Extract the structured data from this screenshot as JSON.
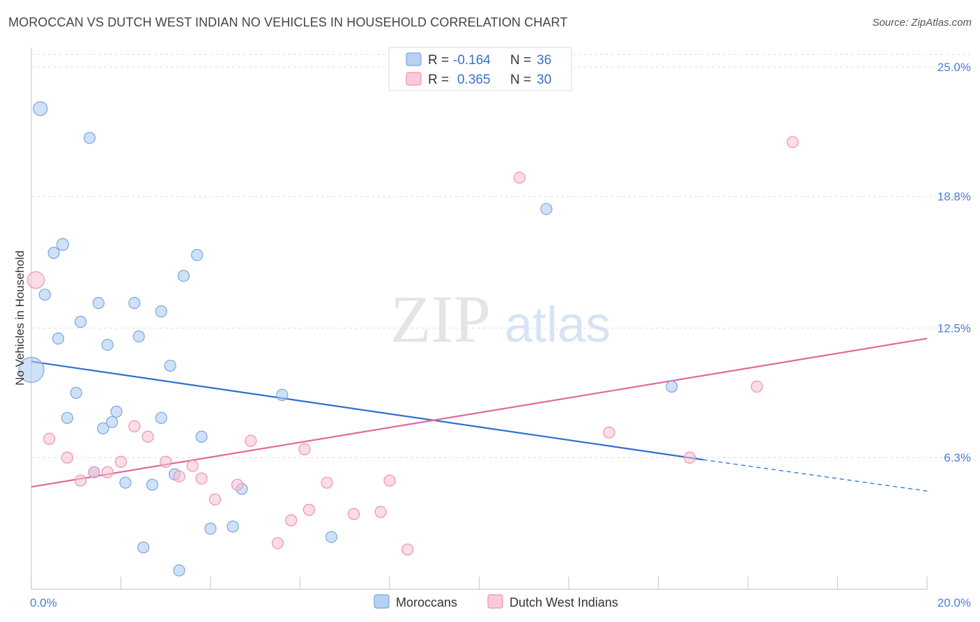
{
  "header": {
    "title": "MOROCCAN VS DUTCH WEST INDIAN NO VEHICLES IN HOUSEHOLD CORRELATION CHART",
    "source": "Source: ZipAtlas.com"
  },
  "watermark": {
    "zip": "ZIP",
    "atlas": "atlas"
  },
  "chart_data": {
    "type": "scatter",
    "title": "MOROCCAN VS DUTCH WEST INDIAN NO VEHICLES IN HOUSEHOLD CORRELATION CHART",
    "xlabel": "",
    "ylabel": "No Vehicles in Household",
    "xlim": [
      0,
      20
    ],
    "ylim": [
      0,
      25.6
    ],
    "x_tick_labels": [
      "0.0%",
      "20.0%"
    ],
    "y_ticks": [
      6.3,
      12.5,
      18.8,
      25.0
    ],
    "y_tick_labels": [
      "6.3%",
      "12.5%",
      "18.8%",
      "25.0%"
    ],
    "grid": true,
    "legend_position": "top-center",
    "legend": [
      {
        "r_label": "R =",
        "r_value": "-0.164",
        "n_label": "N =",
        "n_value": "36"
      },
      {
        "r_label": "R =",
        "r_value": "0.365",
        "n_label": "N =",
        "n_value": "30"
      }
    ],
    "series": [
      {
        "name": "Moroccans",
        "color": "#a8c8f0",
        "stroke": "#7aa6dc",
        "trend_color": "#2f6fcf",
        "trend": {
          "x0": 0.0,
          "y0": 10.9,
          "x1": 15.0,
          "y1": 6.2,
          "dash_to_x": 20.0,
          "dash_to_y": 4.7
        },
        "points": [
          [
            0.2,
            23.0,
            20
          ],
          [
            1.3,
            21.6,
            16
          ],
          [
            0.5,
            16.1,
            16
          ],
          [
            0.7,
            16.5,
            17
          ],
          [
            3.7,
            16.0,
            16
          ],
          [
            0.3,
            14.1,
            16
          ],
          [
            1.5,
            13.7,
            16
          ],
          [
            2.3,
            13.7,
            16
          ],
          [
            2.9,
            13.3,
            16
          ],
          [
            3.4,
            15.0,
            16
          ],
          [
            1.1,
            12.8,
            16
          ],
          [
            0.6,
            12.0,
            16
          ],
          [
            2.4,
            12.1,
            16
          ],
          [
            1.7,
            11.7,
            16
          ],
          [
            3.1,
            10.7,
            16
          ],
          [
            0.0,
            10.5,
            36
          ],
          [
            1.0,
            9.4,
            16
          ],
          [
            5.6,
            9.3,
            16
          ],
          [
            1.9,
            8.5,
            16
          ],
          [
            0.8,
            8.2,
            16
          ],
          [
            1.8,
            8.0,
            16
          ],
          [
            2.9,
            8.2,
            16
          ],
          [
            1.6,
            7.7,
            16
          ],
          [
            3.8,
            7.3,
            16
          ],
          [
            1.4,
            5.6,
            16
          ],
          [
            3.2,
            5.5,
            16
          ],
          [
            2.1,
            5.1,
            16
          ],
          [
            2.7,
            5.0,
            16
          ],
          [
            4.7,
            4.8,
            16
          ],
          [
            4.5,
            3.0,
            16
          ],
          [
            4.0,
            2.9,
            16
          ],
          [
            6.7,
            2.5,
            16
          ],
          [
            2.5,
            2.0,
            16
          ],
          [
            3.3,
            0.9,
            16
          ],
          [
            11.5,
            18.2,
            16
          ],
          [
            14.3,
            9.7,
            16
          ]
        ]
      },
      {
        "name": "Dutch West Indians",
        "color": "#f8c0d4",
        "stroke": "#eb93b3",
        "trend_color": "#e06a98",
        "trend": {
          "x0": 0.0,
          "y0": 4.9,
          "x1": 20.0,
          "y1": 12.0
        },
        "points": [
          [
            0.1,
            14.8,
            24
          ],
          [
            0.4,
            7.2,
            16
          ],
          [
            0.8,
            6.3,
            16
          ],
          [
            1.1,
            5.2,
            16
          ],
          [
            1.4,
            5.6,
            16
          ],
          [
            1.7,
            5.6,
            16
          ],
          [
            2.0,
            6.1,
            16
          ],
          [
            2.3,
            7.8,
            16
          ],
          [
            2.6,
            7.3,
            16
          ],
          [
            3.0,
            6.1,
            16
          ],
          [
            3.3,
            5.4,
            16
          ],
          [
            3.6,
            5.9,
            16
          ],
          [
            3.8,
            5.3,
            16
          ],
          [
            4.1,
            4.3,
            16
          ],
          [
            4.6,
            5.0,
            16
          ],
          [
            4.9,
            7.1,
            16
          ],
          [
            5.5,
            2.2,
            16
          ],
          [
            5.8,
            3.3,
            16
          ],
          [
            6.1,
            6.7,
            16
          ],
          [
            6.2,
            3.8,
            16
          ],
          [
            6.6,
            5.1,
            16
          ],
          [
            7.2,
            3.6,
            16
          ],
          [
            7.8,
            3.7,
            16
          ],
          [
            8.0,
            5.2,
            16
          ],
          [
            8.4,
            1.9,
            16
          ],
          [
            10.9,
            19.7,
            16
          ],
          [
            12.9,
            7.5,
            16
          ],
          [
            14.7,
            6.3,
            16
          ],
          [
            16.2,
            9.7,
            16
          ],
          [
            17.0,
            21.4,
            16
          ]
        ]
      }
    ]
  }
}
